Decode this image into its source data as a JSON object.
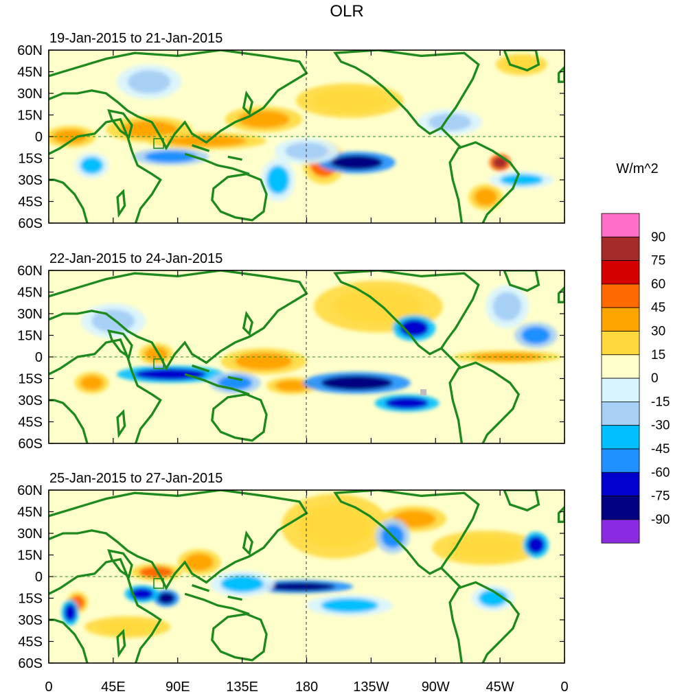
{
  "chart_data": {
    "type": "heatmap",
    "title": "OLR",
    "colorbar": {
      "units": "W/m^2",
      "labels": [
        "90",
        "75",
        "60",
        "45",
        "30",
        "15",
        "0",
        "-15",
        "-30",
        "-45",
        "-60",
        "-75",
        "-90"
      ],
      "colors": [
        "#FF6EC7",
        "#A52A2A",
        "#D40000",
        "#FF6A00",
        "#FFA500",
        "#FFD93D",
        "#FFFFCC",
        "#D8F4FF",
        "#A7D0F5",
        "#00BFFF",
        "#1E90FF",
        "#0000CD",
        "#000080",
        "#8A2BE2"
      ]
    },
    "x_ticks": [
      "0",
      "45E",
      "90E",
      "135E",
      "180",
      "135W",
      "90W",
      "45W",
      "0"
    ],
    "y_ticks": [
      "60N",
      "45N",
      "30N",
      "15N",
      "0",
      "15S",
      "30S",
      "45S",
      "60S"
    ],
    "xlim": [
      0,
      360
    ],
    "ylim": [
      -60,
      60
    ],
    "panels": [
      {
        "subtitle": "19-Jan-2015 to 21-Jan-2015",
        "anomalies": [
          {
            "lon": 15,
            "lat": 0,
            "value": 30,
            "rx": 12,
            "ry": 5
          },
          {
            "lon": 70,
            "lat": 5,
            "value": 35,
            "rx": 20,
            "ry": 6
          },
          {
            "lon": 150,
            "lat": 12,
            "value": 30,
            "rx": 18,
            "ry": 6
          },
          {
            "lon": 110,
            "lat": -3,
            "value": 40,
            "rx": 28,
            "ry": 4
          },
          {
            "lon": 192,
            "lat": -18,
            "value": 45,
            "rx": 10,
            "ry": 10
          },
          {
            "lon": 210,
            "lat": 25,
            "value": 20,
            "rx": 25,
            "ry": 8
          },
          {
            "lon": 315,
            "lat": -18,
            "value": 75,
            "rx": 5,
            "ry": 4
          },
          {
            "lon": 305,
            "lat": -42,
            "value": 30,
            "rx": 8,
            "ry": 6
          },
          {
            "lon": 215,
            "lat": -18,
            "value": -80,
            "rx": 18,
            "ry": 5
          },
          {
            "lon": 85,
            "lat": -14,
            "value": -50,
            "rx": 18,
            "ry": 4
          },
          {
            "lon": 160,
            "lat": -30,
            "value": -45,
            "rx": 8,
            "ry": 10
          },
          {
            "lon": 30,
            "lat": -20,
            "value": -45,
            "rx": 8,
            "ry": 6
          },
          {
            "lon": 180,
            "lat": -10,
            "value": -30,
            "rx": 15,
            "ry": 6
          },
          {
            "lon": 70,
            "lat": 38,
            "value": -30,
            "rx": 15,
            "ry": 8
          },
          {
            "lon": 280,
            "lat": 10,
            "value": -30,
            "rx": 15,
            "ry": 6
          },
          {
            "lon": 330,
            "lat": -30,
            "value": -35,
            "rx": 15,
            "ry": 4
          },
          {
            "lon": 330,
            "lat": 50,
            "value": 20,
            "rx": 12,
            "ry": 5
          }
        ]
      },
      {
        "subtitle": "22-Jan-2015 to 24-Jan-2015",
        "anomalies": [
          {
            "lon": 30,
            "lat": -18,
            "value": 40,
            "rx": 8,
            "ry": 5
          },
          {
            "lon": 150,
            "lat": -3,
            "value": 35,
            "rx": 20,
            "ry": 6
          },
          {
            "lon": 75,
            "lat": 2,
            "value": 30,
            "rx": 8,
            "ry": 5
          },
          {
            "lon": 170,
            "lat": -20,
            "value": 30,
            "rx": 12,
            "ry": 4
          },
          {
            "lon": 230,
            "lat": 35,
            "value": 25,
            "rx": 30,
            "ry": 12
          },
          {
            "lon": 320,
            "lat": 0,
            "value": 30,
            "rx": 25,
            "ry": 3
          },
          {
            "lon": 215,
            "lat": -18,
            "value": -80,
            "rx": 25,
            "ry": 5
          },
          {
            "lon": 250,
            "lat": -32,
            "value": -70,
            "rx": 15,
            "ry": 4
          },
          {
            "lon": 85,
            "lat": -12,
            "value": -75,
            "rx": 25,
            "ry": 4
          },
          {
            "lon": 130,
            "lat": -18,
            "value": -50,
            "rx": 12,
            "ry": 5
          },
          {
            "lon": 255,
            "lat": 20,
            "value": -65,
            "rx": 10,
            "ry": 6
          },
          {
            "lon": 340,
            "lat": 15,
            "value": -50,
            "rx": 10,
            "ry": 6
          },
          {
            "lon": 320,
            "lat": 35,
            "value": -20,
            "rx": 10,
            "ry": 10
          },
          {
            "lon": 45,
            "lat": 25,
            "value": -20,
            "rx": 15,
            "ry": 8
          }
        ]
      },
      {
        "subtitle": "25-Jan-2015 to 27-Jan-2015",
        "anomalies": [
          {
            "lon": 20,
            "lat": -18,
            "value": 50,
            "rx": 5,
            "ry": 5
          },
          {
            "lon": 75,
            "lat": 3,
            "value": 45,
            "rx": 12,
            "ry": 4
          },
          {
            "lon": 105,
            "lat": 10,
            "value": 30,
            "rx": 10,
            "ry": 6
          },
          {
            "lon": 200,
            "lat": 35,
            "value": 25,
            "rx": 25,
            "ry": 15
          },
          {
            "lon": 255,
            "lat": 40,
            "value": 30,
            "rx": 15,
            "ry": 6
          },
          {
            "lon": 305,
            "lat": 20,
            "value": 25,
            "rx": 25,
            "ry": 8
          },
          {
            "lon": 55,
            "lat": -35,
            "value": 25,
            "rx": 20,
            "ry": 5
          },
          {
            "lon": 82,
            "lat": -15,
            "value": -90,
            "rx": 6,
            "ry": 4
          },
          {
            "lon": 65,
            "lat": -12,
            "value": -70,
            "rx": 8,
            "ry": 4
          },
          {
            "lon": 175,
            "lat": -7,
            "value": -80,
            "rx": 25,
            "ry": 3
          },
          {
            "lon": 135,
            "lat": -5,
            "value": -45,
            "rx": 15,
            "ry": 6
          },
          {
            "lon": 240,
            "lat": 28,
            "value": -55,
            "rx": 8,
            "ry": 8
          },
          {
            "lon": 340,
            "lat": 22,
            "value": -70,
            "rx": 6,
            "ry": 6
          },
          {
            "lon": 15,
            "lat": -25,
            "value": -75,
            "rx": 4,
            "ry": 6
          },
          {
            "lon": 310,
            "lat": -15,
            "value": -40,
            "rx": 10,
            "ry": 6
          },
          {
            "lon": 210,
            "lat": -20,
            "value": -35,
            "rx": 20,
            "ry": 5
          }
        ]
      }
    ]
  }
}
